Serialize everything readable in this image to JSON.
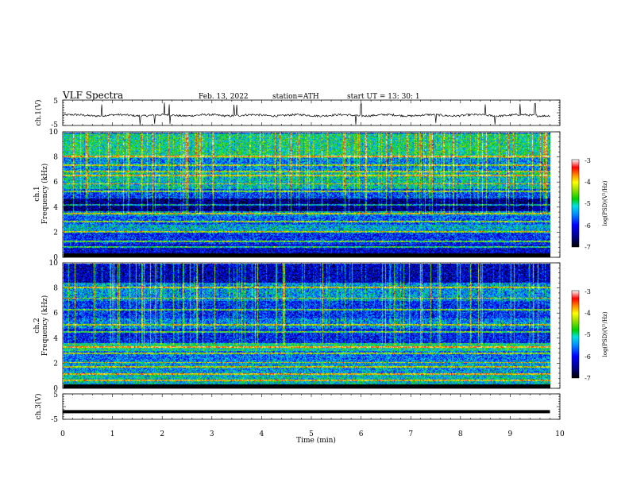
{
  "header": {
    "title": "VLF Spectra",
    "date": "Feb. 13, 2022",
    "station": "station=ATH",
    "start": "start UT = 13: 30: 1"
  },
  "chart_data": [
    {
      "type": "line",
      "ylabel": "ch.1(V)",
      "yticks": [
        "5",
        "-5"
      ],
      "ylim": [
        -5,
        5
      ],
      "xlim": [
        0,
        10
      ],
      "data_end_min": 9.8,
      "baseline_v": -1.0,
      "noise_v": 0.4,
      "spikes_min": [
        0.78,
        1.55,
        1.85,
        2.05,
        2.15,
        3.45,
        3.5,
        5.9,
        6.0,
        7.5,
        8.5,
        8.7,
        9.2,
        9.5
      ]
    },
    {
      "type": "heatmap",
      "ylabel": "ch.1\nFrequency (kHz)",
      "yticks": [
        "0",
        "2",
        "4",
        "6",
        "8",
        "10"
      ],
      "ylim": [
        0,
        10
      ],
      "xlim": [
        0,
        10
      ],
      "data_end_min": 9.8,
      "zlabel": "log(PSD)(V²/Hz)",
      "zlim": [
        -7,
        -3
      ],
      "zticks": [
        "-3",
        "-4",
        "-5",
        "-6",
        "-7"
      ],
      "band_levels": [
        [
          0,
          0.3,
          -7
        ],
        [
          0.3,
          1.0,
          -6.2
        ],
        [
          1.0,
          2.0,
          -5.9
        ],
        [
          2.0,
          2.6,
          -5.3
        ],
        [
          2.6,
          3.3,
          -5.7
        ],
        [
          3.3,
          3.7,
          -5.4
        ],
        [
          3.7,
          4.7,
          -6.6
        ],
        [
          4.7,
          5.5,
          -5.8
        ],
        [
          5.5,
          6.8,
          -5.2
        ],
        [
          6.8,
          8.0,
          -5.5
        ],
        [
          8.0,
          10.0,
          -5.0
        ]
      ],
      "lines_khz": [
        0.8,
        1.25,
        2.0,
        2.85,
        3.5,
        4.2,
        5.3,
        5.9,
        6.55,
        6.9,
        7.4,
        8.1
      ]
    },
    {
      "type": "heatmap",
      "ylabel": "ch.2\nFrequency (kHz)",
      "yticks": [
        "0",
        "2",
        "4",
        "6",
        "8",
        "10"
      ],
      "ylim": [
        0,
        10
      ],
      "xlim": [
        0,
        10
      ],
      "data_end_min": 9.8,
      "zlabel": "log(PSD)(V²/Hz)",
      "zlim": [
        -7,
        -3
      ],
      "zticks": [
        "-3",
        "-4",
        "-5",
        "-6",
        "-7"
      ],
      "band_levels": [
        [
          0,
          0.3,
          -7
        ],
        [
          0.3,
          1.2,
          -5.2
        ],
        [
          1.2,
          2.2,
          -5.4
        ],
        [
          2.2,
          3.0,
          -5.6
        ],
        [
          3.0,
          3.6,
          -5.0
        ],
        [
          3.6,
          4.8,
          -6.0
        ],
        [
          4.8,
          5.6,
          -5.5
        ],
        [
          5.6,
          7.0,
          -5.9
        ],
        [
          7.0,
          8.5,
          -5.4
        ],
        [
          8.5,
          10.0,
          -6.3
        ]
      ],
      "lines_khz": [
        0.6,
        1.1,
        1.7,
        2.05,
        2.8,
        3.3,
        4.5,
        5.1,
        6.3,
        7.25,
        8.1
      ]
    },
    {
      "type": "line",
      "ylabel": "ch.3(V)",
      "yticks": [
        "5",
        "-5"
      ],
      "ylim": [
        -5,
        5
      ],
      "xlim": [
        0,
        10
      ],
      "data_end_min": 9.8,
      "level_v": -2.0,
      "xlabel": "Time (min)",
      "xticks": [
        "0",
        "1",
        "2",
        "3",
        "4",
        "5",
        "6",
        "7",
        "8",
        "9",
        "10"
      ]
    }
  ]
}
